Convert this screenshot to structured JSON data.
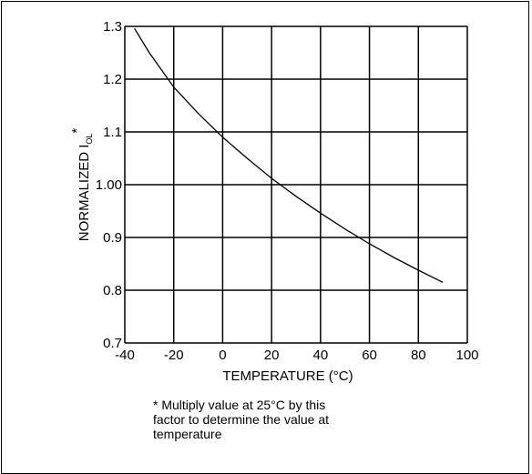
{
  "chart_data": {
    "type": "line",
    "xlabel": "TEMPERATURE (°C)",
    "ylabel_main": "NORMALIZED I",
    "ylabel_sub": "OL",
    "ylabel_sup": "*",
    "xlim": [
      -40,
      100
    ],
    "ylim": [
      0.7,
      1.3
    ],
    "xticks": [
      -40,
      -20,
      0,
      20,
      40,
      60,
      80,
      100
    ],
    "xtick_labels": [
      "-40",
      "-20",
      "0",
      "20",
      "40",
      "60",
      "80",
      "100"
    ],
    "yticks": [
      0.7,
      0.8,
      0.9,
      1.0,
      1.1,
      1.2,
      1.3
    ],
    "ytick_labels": [
      "0.7",
      "0.8",
      "0.9",
      "1.00",
      "1.1",
      "1.2",
      "1.3"
    ],
    "grid": true,
    "series": [
      {
        "x": [
          -36,
          -30,
          -20,
          -10,
          0,
          10,
          20,
          30,
          40,
          50,
          60,
          70,
          80,
          90
        ],
        "y": [
          1.296,
          1.25,
          1.185,
          1.135,
          1.09,
          1.05,
          1.012,
          0.978,
          0.946,
          0.916,
          0.888,
          0.862,
          0.838,
          0.815
        ]
      }
    ]
  },
  "footnote": {
    "line1": "* Multiply value at 25°C by this",
    "line2": "factor to determine the value at",
    "line3": "temperature"
  }
}
